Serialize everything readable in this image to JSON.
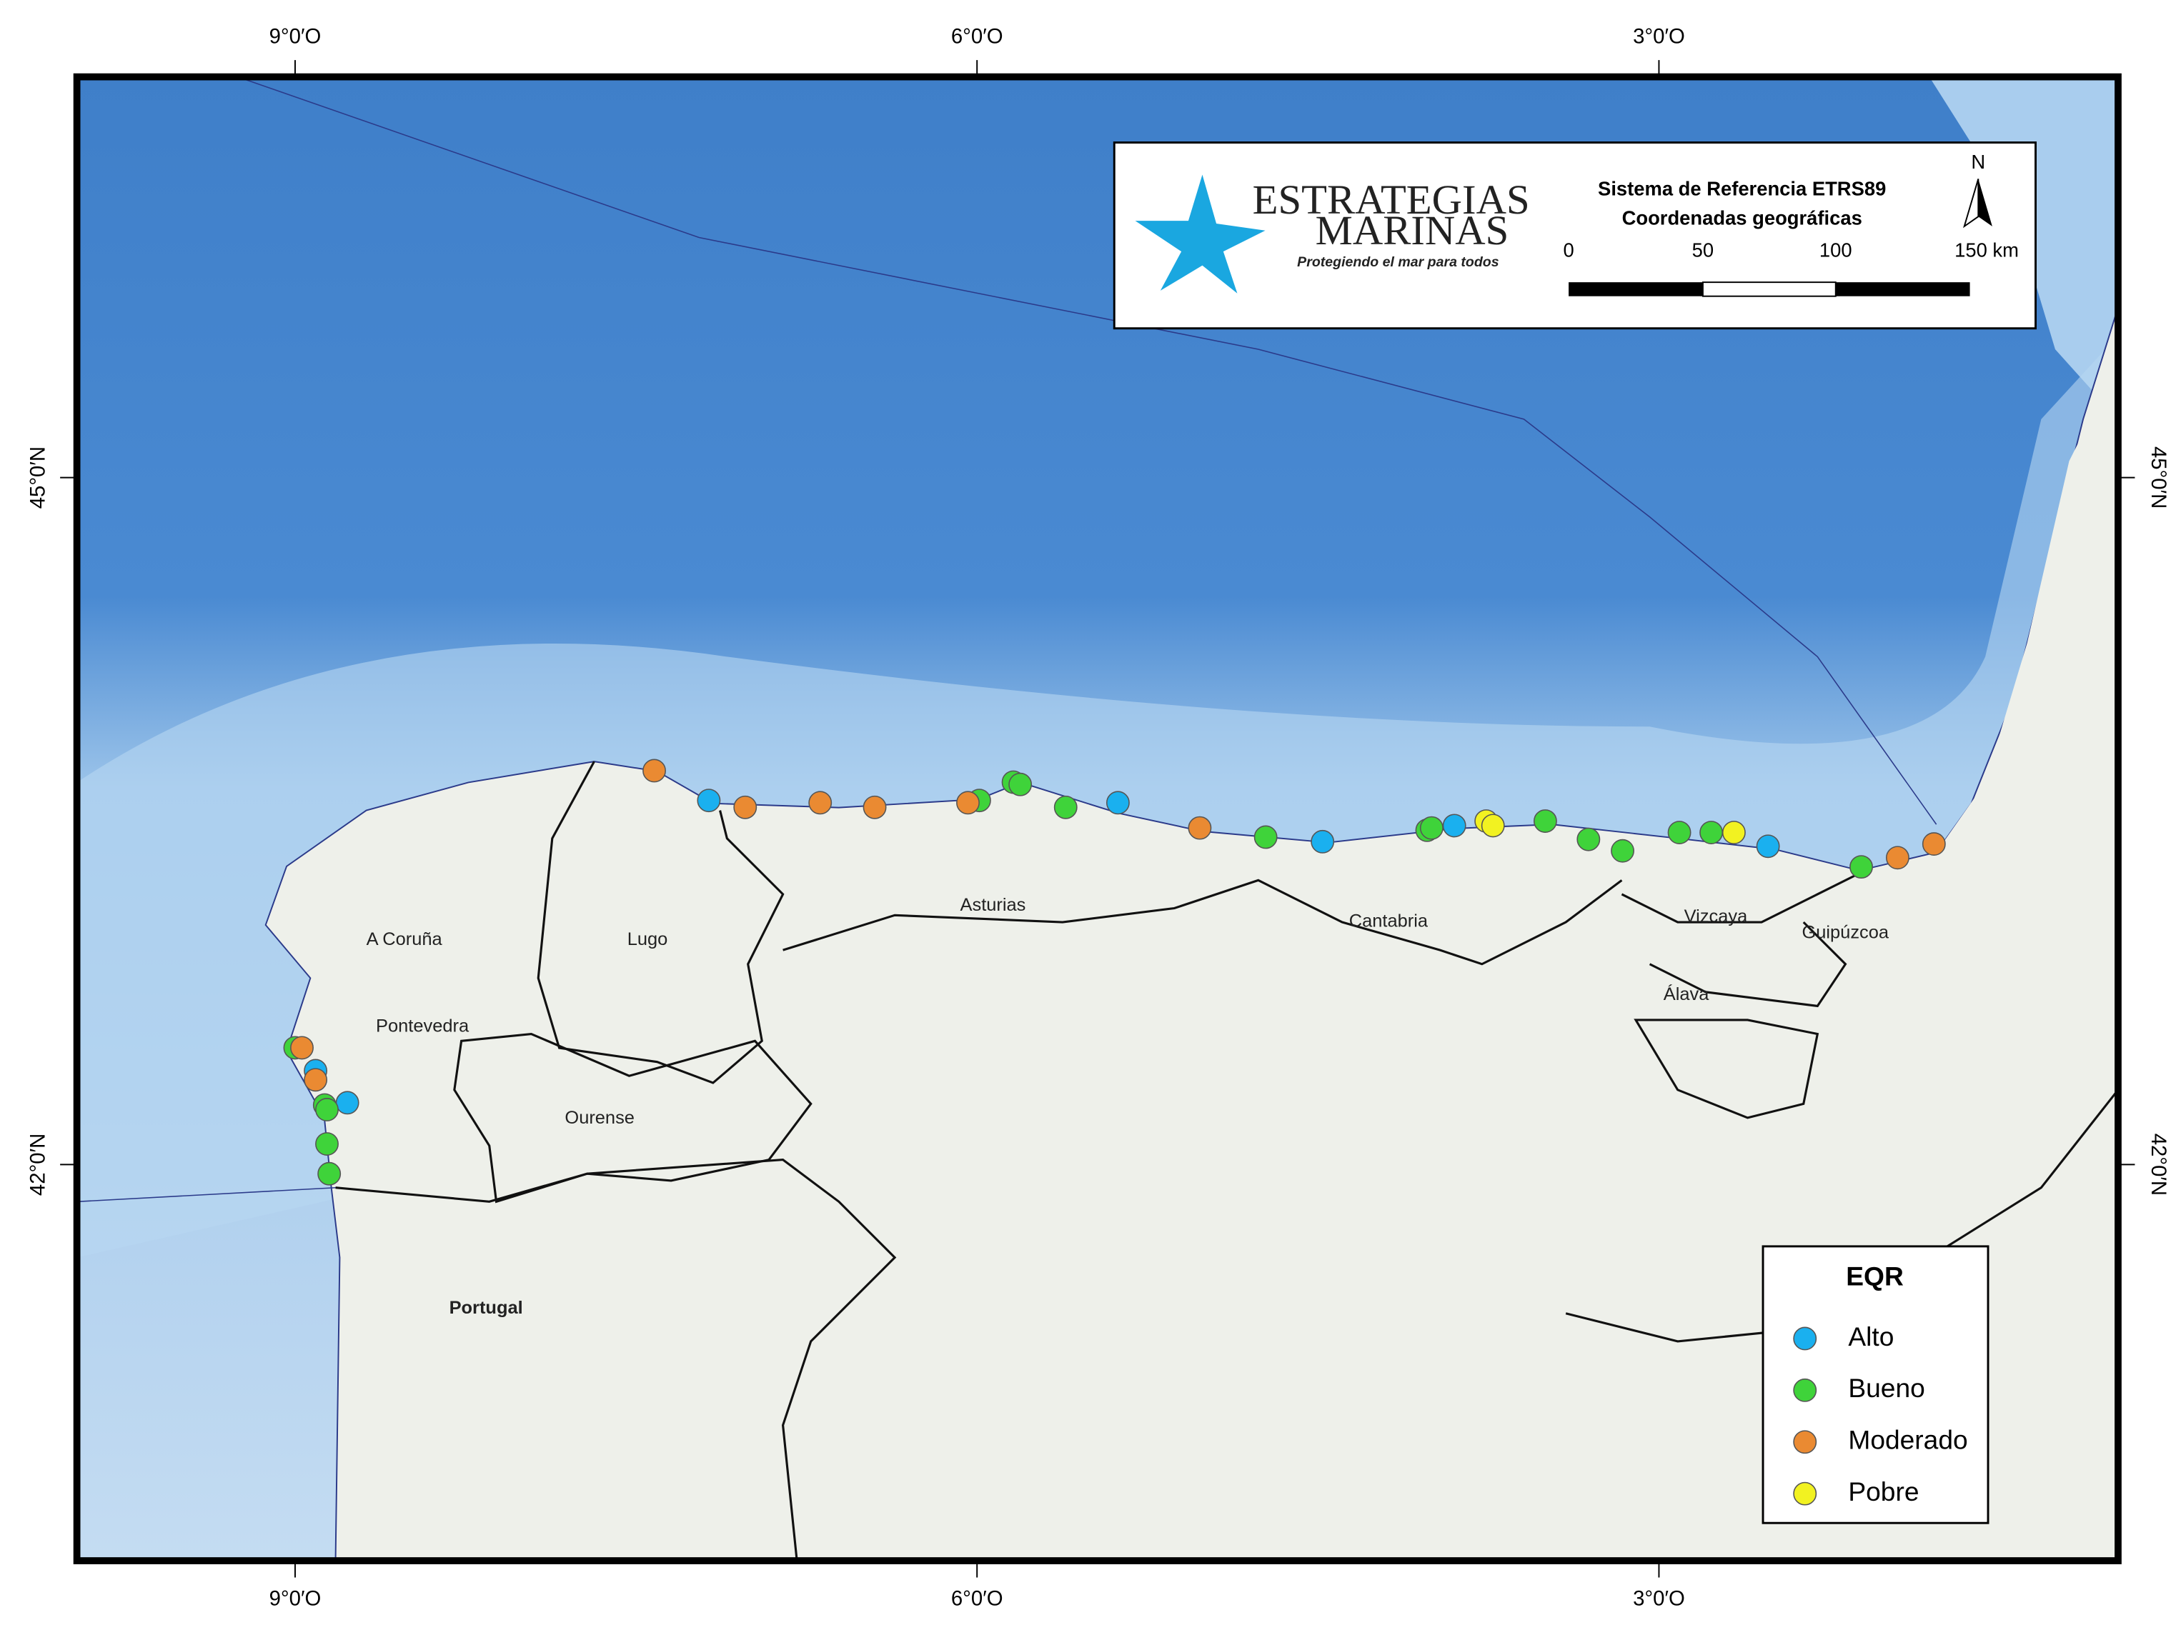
{
  "chart_data": {
    "type": "map",
    "xlim": [
      -9.96,
      -0.98
    ],
    "ylim": [
      40.27,
      46.75
    ],
    "xticks": [
      {
        "value": -9,
        "label": "9°0′O"
      },
      {
        "value": -6,
        "label": "6°0′O"
      },
      {
        "value": -3,
        "label": "3°0′O"
      }
    ],
    "yticks": [
      {
        "value": 45,
        "label": "45°0′N"
      },
      {
        "value": 42,
        "label": "42°0′N"
      }
    ],
    "legend_title": "EQR",
    "legend": "bottom-right",
    "series": [
      {
        "name": "Alto",
        "color": "#1ab0ef",
        "x": [
          -7.18,
          -5.38,
          -4.48,
          -3.9,
          -2.52,
          -8.91,
          -8.77
        ],
        "values": [
          43.59,
          43.58,
          43.41,
          43.48,
          43.39,
          42.41,
          42.27
        ]
      },
      {
        "name": "Bueno",
        "color": "#3fd33a",
        "x": [
          -5.99,
          -5.84,
          -5.81,
          -5.61,
          -4.73,
          -4.02,
          -4.0,
          -3.5,
          -3.31,
          -3.16,
          -2.91,
          -2.77,
          -2.11,
          -9.0,
          -8.87,
          -8.86,
          -8.86,
          -8.85
        ],
        "values": [
          43.59,
          43.67,
          43.66,
          43.56,
          43.43,
          43.46,
          43.47,
          43.5,
          43.42,
          43.37,
          43.45,
          43.45,
          43.3,
          42.51,
          42.26,
          42.24,
          42.09,
          41.96
        ]
      },
      {
        "name": "Moderado",
        "color": "#ea8a32",
        "x": [
          -7.42,
          -7.02,
          -6.69,
          -6.45,
          -6.04,
          -5.02,
          -1.95,
          -1.79,
          -8.97,
          -8.91
        ],
        "values": [
          43.72,
          43.56,
          43.58,
          43.56,
          43.58,
          43.47,
          43.34,
          43.4,
          42.51,
          42.37
        ]
      },
      {
        "name": "Pobre",
        "color": "#f2f221",
        "x": [
          -3.76,
          -3.73,
          -2.67
        ],
        "values": [
          43.5,
          43.48,
          43.45
        ]
      }
    ],
    "regions": [
      {
        "label": "A Coruña",
        "lon": -8.52,
        "lat": 42.98
      },
      {
        "label": "Lugo",
        "lon": -7.45,
        "lat": 42.98
      },
      {
        "label": "Asturias",
        "lon": -5.93,
        "lat": 43.13
      },
      {
        "label": "Cantabria",
        "lon": -4.19,
        "lat": 43.06
      },
      {
        "label": "Vizcaya",
        "lon": -2.75,
        "lat": 43.08
      },
      {
        "label": "Guipúzcoa",
        "lon": -2.18,
        "lat": 43.01
      },
      {
        "label": "Álava",
        "lon": -2.88,
        "lat": 42.74
      },
      {
        "label": "Pontevedra",
        "lon": -8.44,
        "lat": 42.6
      },
      {
        "label": "Ourense",
        "lon": -7.66,
        "lat": 42.2
      },
      {
        "label": "Portugal",
        "lon": -8.16,
        "lat": 41.37
      }
    ],
    "logo": {
      "name_top": "ESTRATEGIAS",
      "name_bottom": "MARINAS",
      "tagline": "Protegiendo el mar para todos"
    },
    "reference": {
      "system": "Sistema de Referencia ETRS89",
      "coordinates": "Coordenadas geográficas",
      "north": "N",
      "scale_labels": [
        "0",
        "50",
        "100",
        "150 km"
      ]
    }
  }
}
